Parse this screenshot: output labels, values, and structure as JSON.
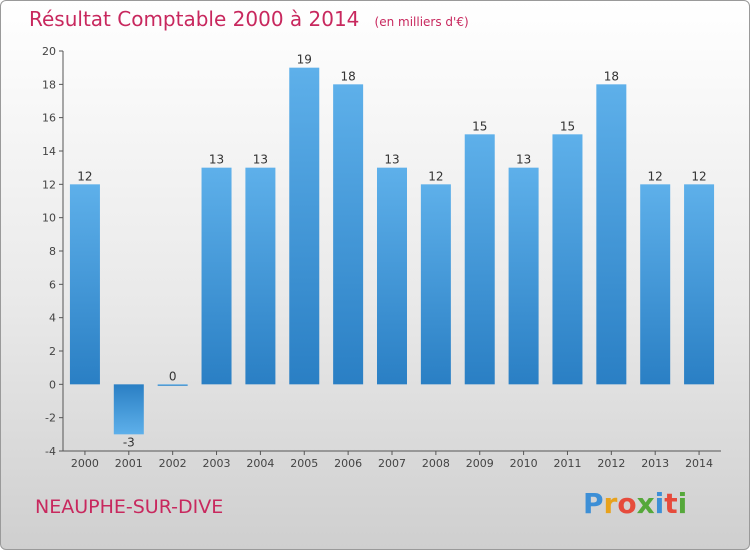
{
  "header": {
    "title": "Résultat Comptable 2000 à 2014",
    "unit": "(en milliers d'€)"
  },
  "footer": {
    "commune": "NEAUPHE-SUR-DIVE",
    "logo_letters": [
      "P",
      "r",
      "o",
      "x",
      "i",
      "t",
      "i"
    ],
    "logo_colors": [
      "#3d8fd6",
      "#e8a21c",
      "#e64b3c",
      "#55a83a",
      "#3d8fd6",
      "#e64b3c",
      "#55a83a"
    ]
  },
  "colors": {
    "accent": "#c8285e",
    "bar_light": "#5eb0ea",
    "bar_dark": "#2a7fc4"
  },
  "chart_data": {
    "type": "bar",
    "title": "Résultat Comptable 2000 à 2014",
    "xlabel": "",
    "ylabel": "",
    "categories": [
      "2000",
      "2001",
      "2002",
      "2003",
      "2004",
      "2005",
      "2006",
      "2007",
      "2008",
      "2009",
      "2010",
      "2011",
      "2012",
      "2013",
      "2014"
    ],
    "values": [
      12,
      -3,
      0,
      13,
      13,
      19,
      18,
      13,
      12,
      15,
      13,
      15,
      18,
      12,
      12
    ],
    "data_labels": [
      "12",
      "-3",
      "0",
      "13",
      "13",
      "19",
      "18",
      "13",
      "12",
      "15",
      "13",
      "15",
      "18",
      "12",
      "12"
    ],
    "ylim": [
      -4,
      20
    ],
    "yticks": [
      -4,
      -2,
      0,
      2,
      4,
      6,
      8,
      10,
      12,
      14,
      16,
      18,
      20
    ],
    "grid": false,
    "legend": "none"
  }
}
